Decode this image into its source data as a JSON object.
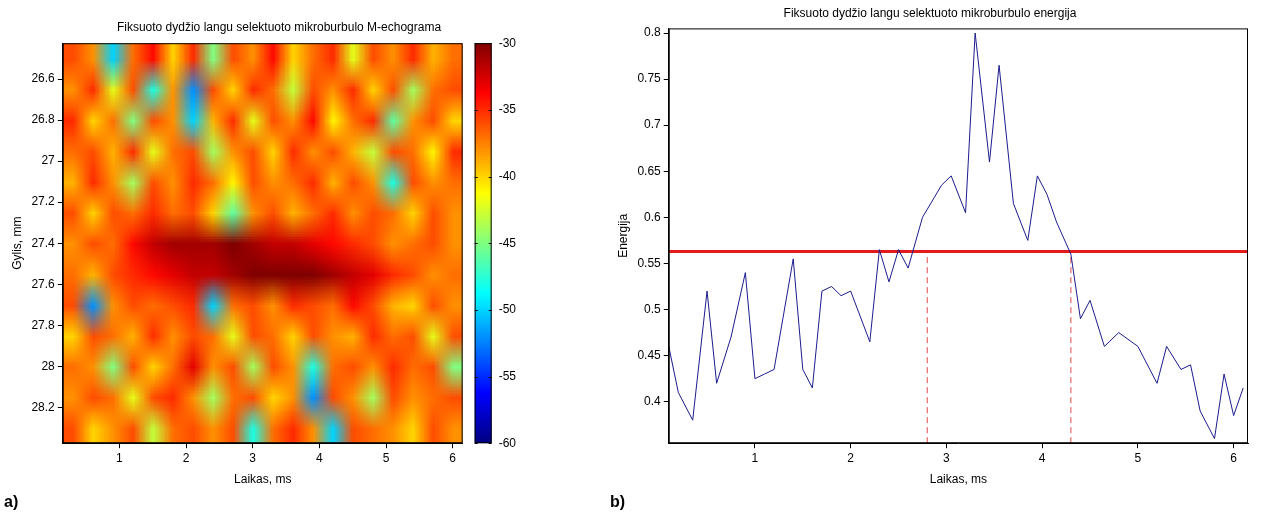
{
  "chart_data": [
    {
      "type": "heatmap",
      "panel": "a)",
      "title": "Fiksuoto dydžio langu selektuoto mikroburbulo M-echograma",
      "x_label": "Laikas, ms",
      "y_label": "Gylis, mm",
      "x": [
        0.3,
        0.6,
        0.9,
        1.2,
        1.5,
        1.8,
        2.1,
        2.4,
        2.7,
        3.0,
        3.3,
        3.6,
        3.9,
        4.2,
        4.5,
        4.8,
        5.1,
        5.4,
        5.7,
        6.0
      ],
      "y": [
        26.5,
        26.65,
        26.8,
        26.95,
        27.1,
        27.25,
        27.4,
        27.55,
        27.7,
        27.85,
        28.0,
        28.15,
        28.3
      ],
      "cells": [
        [
          -36,
          -38,
          -50,
          -37,
          -34,
          -40,
          -35,
          -45,
          -36,
          -38,
          -34,
          -40,
          -37,
          -35,
          -42,
          -36,
          -38,
          -35,
          -39,
          -37
        ],
        [
          -38,
          -35,
          -42,
          -36,
          -48,
          -38,
          -52,
          -36,
          -40,
          -35,
          -37,
          -43,
          -36,
          -38,
          -35,
          -40,
          -36,
          -44,
          -37,
          -36
        ],
        [
          -35,
          -40,
          -37,
          -45,
          -36,
          -38,
          -50,
          -39,
          -35,
          -42,
          -36,
          -38,
          -34,
          -41,
          -37,
          -35,
          -46,
          -38,
          -36,
          -40
        ],
        [
          -37,
          -36,
          -39,
          -35,
          -42,
          -37,
          -36,
          -44,
          -38,
          -36,
          -40,
          -35,
          -38,
          -36,
          -39,
          -43,
          -36,
          -37,
          -41,
          -35
        ],
        [
          -39,
          -35,
          -38,
          -44,
          -36,
          -38,
          -35,
          -37,
          -41,
          -36,
          -38,
          -37,
          -35,
          -39,
          -36,
          -38,
          -48,
          -36,
          -38,
          -37
        ],
        [
          -36,
          -40,
          -36,
          -37,
          -35,
          -37,
          -36,
          -40,
          -46,
          -38,
          -36,
          -39,
          -37,
          -35,
          -38,
          -36,
          -37,
          -40,
          -36,
          -38
        ],
        [
          -38,
          -36,
          -37,
          -34,
          -32,
          -31,
          -31,
          -31,
          -30,
          -31,
          -32,
          -32,
          -33,
          -34,
          -35,
          -36,
          -38,
          -37,
          -36,
          -38
        ],
        [
          -37,
          -39,
          -36,
          -35,
          -34,
          -33,
          -32,
          -32,
          -31,
          -30,
          -30,
          -30,
          -30,
          -31,
          -32,
          -33,
          -35,
          -36,
          -38,
          -37
        ],
        [
          -36,
          -52,
          -38,
          -36,
          -37,
          -36,
          -35,
          -50,
          -37,
          -36,
          -38,
          -35,
          -36,
          -37,
          -34,
          -36,
          -39,
          -40,
          -36,
          -38
        ],
        [
          -40,
          -36,
          -37,
          -39,
          -35,
          -38,
          -36,
          -37,
          -42,
          -36,
          -37,
          -40,
          -36,
          -38,
          -39,
          -35,
          -37,
          -36,
          -42,
          -36
        ],
        [
          -37,
          -38,
          -45,
          -36,
          -40,
          -37,
          -33,
          -38,
          -36,
          -44,
          -36,
          -38,
          -48,
          -37,
          -36,
          -38,
          -35,
          -37,
          -36,
          -45
        ],
        [
          -38,
          -36,
          -37,
          -42,
          -36,
          -35,
          -38,
          -44,
          -37,
          -36,
          -40,
          -38,
          -52,
          -36,
          -38,
          -44,
          -36,
          -38,
          -37,
          -36
        ],
        [
          -36,
          -40,
          -38,
          -36,
          -43,
          -37,
          -36,
          -38,
          -36,
          -48,
          -37,
          -35,
          -38,
          -50,
          -36,
          -37,
          -38,
          -40,
          -36,
          -38
        ]
      ],
      "xlim": [
        0.15,
        6.15
      ],
      "ylim": [
        28.375,
        26.425
      ],
      "xticks": [
        1,
        2,
        3,
        4,
        5,
        6
      ],
      "yticks": [
        26.6,
        26.8,
        27,
        27.2,
        27.4,
        27.6,
        27.8,
        28,
        28.2
      ],
      "colorbar": {
        "range": [
          -60,
          -30
        ],
        "ticks": [
          -60,
          -55,
          -50,
          -45,
          -40,
          -35,
          -30
        ]
      },
      "grid": false
    },
    {
      "type": "line",
      "panel": "b)",
      "title": "Fiksuoto dydžio langu selektuoto mikroburbulo energija",
      "x_label": "Laikas, ms",
      "y_label": "Energija",
      "x": [
        0.1,
        0.2,
        0.35,
        0.5,
        0.6,
        0.75,
        0.9,
        1.0,
        1.1,
        1.2,
        1.4,
        1.5,
        1.6,
        1.7,
        1.8,
        1.9,
        2.0,
        2.2,
        2.3,
        2.4,
        2.5,
        2.6,
        2.75,
        2.95,
        3.05,
        3.2,
        3.3,
        3.45,
        3.55,
        3.7,
        3.85,
        3.95,
        4.05,
        4.15,
        4.3,
        4.4,
        4.5,
        4.65,
        4.8,
        5.0,
        5.2,
        5.3,
        5.45,
        5.55,
        5.65,
        5.8,
        5.9,
        6.0,
        6.1
      ],
      "values": [
        0.46,
        0.41,
        0.38,
        0.52,
        0.42,
        0.47,
        0.54,
        0.425,
        0.43,
        0.435,
        0.555,
        0.435,
        0.415,
        0.52,
        0.525,
        0.515,
        0.52,
        0.465,
        0.565,
        0.53,
        0.565,
        0.545,
        0.6,
        0.635,
        0.645,
        0.605,
        0.8,
        0.66,
        0.765,
        0.615,
        0.575,
        0.645,
        0.625,
        0.595,
        0.56,
        0.49,
        0.51,
        0.46,
        0.475,
        0.46,
        0.42,
        0.46,
        0.435,
        0.44,
        0.39,
        0.36,
        0.43,
        0.385,
        0.415
      ],
      "color": "#1c1c8f",
      "xlim": [
        0.1,
        6.15
      ],
      "ylim": [
        0.355,
        0.805
      ],
      "xticks": [
        1,
        2,
        3,
        4,
        5,
        6
      ],
      "yticks": [
        0.4,
        0.45,
        0.5,
        0.55,
        0.6,
        0.65,
        0.7,
        0.75,
        0.8
      ],
      "threshold": {
        "value": 0.563,
        "color": "#e31a1c"
      },
      "vlines": {
        "x": [
          2.8,
          4.3
        ],
        "color": "#e34a4a",
        "line_style": "dashed"
      },
      "grid": false
    }
  ]
}
